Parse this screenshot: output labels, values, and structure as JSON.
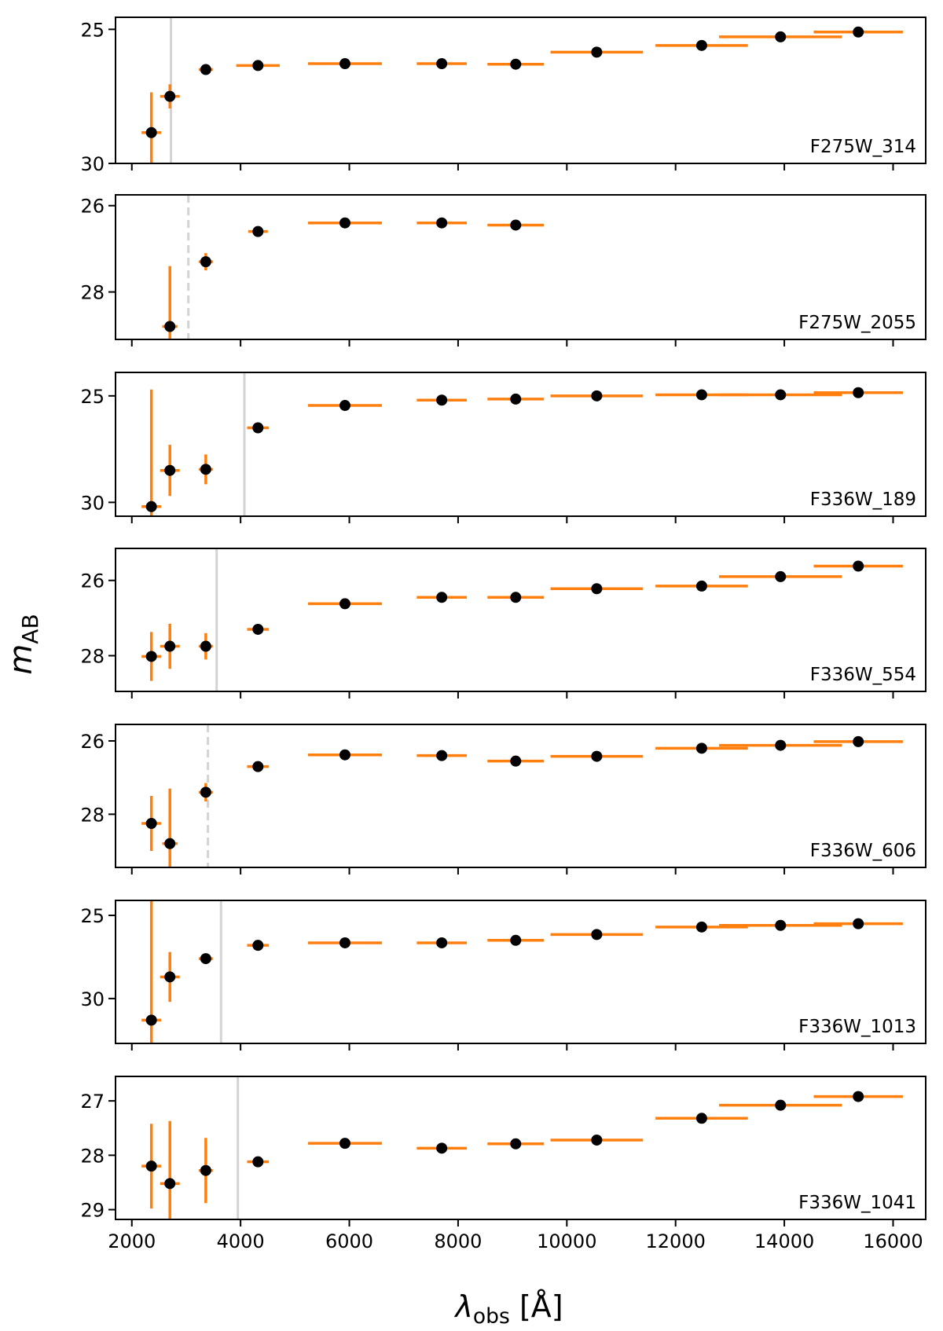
{
  "chart_data": {
    "type": "scatter",
    "description_free": true,
    "xlabel": "λobs [Å]",
    "ylabel": "mAB",
    "xlim": [
      1700,
      16600
    ],
    "xticks": [
      2000,
      4000,
      6000,
      8000,
      10000,
      12000,
      14000,
      16000
    ],
    "y_inverted": true,
    "grid": false,
    "colors": {
      "errorbar": "#ff7f0e",
      "marker": "#000000",
      "limit_solid": "#d3d3d3",
      "limit_dashed": "#d3d3d3",
      "frame": "#000000"
    },
    "panels": [
      {
        "label": "F275W_314",
        "ylim": [
          30.0,
          24.55
        ],
        "yticks": [
          25,
          30
        ],
        "limit": {
          "x": 2720,
          "style": "solid"
        },
        "points": [
          {
            "x": 2360,
            "y": 28.85,
            "xerr": 180,
            "yerr": 1.5
          },
          {
            "x": 2700,
            "y": 27.5,
            "xerr": 180,
            "yerr": 0.45
          },
          {
            "x": 3360,
            "y": 26.5,
            "xerr": 130,
            "yerr": 0.15
          },
          {
            "x": 4320,
            "y": 26.35,
            "xerr": 400,
            "yerr": 0.08
          },
          {
            "x": 5920,
            "y": 26.28,
            "xerr": 680,
            "yerr": 0.06
          },
          {
            "x": 7700,
            "y": 26.28,
            "xerr": 460,
            "yerr": 0.06
          },
          {
            "x": 9060,
            "y": 26.3,
            "xerr": 520,
            "yerr": 0.06
          },
          {
            "x": 10550,
            "y": 25.85,
            "xerr": 850,
            "yerr": 0.06
          },
          {
            "x": 12480,
            "y": 25.6,
            "xerr": 850,
            "yerr": 0.06
          },
          {
            "x": 13930,
            "y": 25.28,
            "xerr": 1130,
            "yerr": 0.06
          },
          {
            "x": 15360,
            "y": 25.1,
            "xerr": 820,
            "yerr": 0.06
          }
        ]
      },
      {
        "label": "F275W_2055",
        "ylim": [
          29.1,
          25.75
        ],
        "yticks": [
          26,
          28
        ],
        "limit": {
          "x": 3040,
          "style": "dashed"
        },
        "points": [
          {
            "x": 2700,
            "y": 28.8,
            "xerr": 140,
            "yerr": 1.4
          },
          {
            "x": 3360,
            "y": 27.3,
            "xerr": 130,
            "yerr": 0.2
          },
          {
            "x": 4320,
            "y": 26.6,
            "xerr": 180,
            "yerr": 0.08
          },
          {
            "x": 5920,
            "y": 26.4,
            "xerr": 680,
            "yerr": 0.06
          },
          {
            "x": 7700,
            "y": 26.4,
            "xerr": 460,
            "yerr": 0.06
          },
          {
            "x": 9060,
            "y": 26.45,
            "xerr": 520,
            "yerr": 0.06
          }
        ]
      },
      {
        "label": "F336W_189",
        "ylim": [
          30.65,
          23.9
        ],
        "yticks": [
          25,
          30
        ],
        "limit": {
          "x": 4070,
          "style": "solid"
        },
        "points": [
          {
            "x": 2360,
            "y": 30.2,
            "xerr": 180,
            "yerr": 5.5
          },
          {
            "x": 2700,
            "y": 28.5,
            "xerr": 180,
            "yerr": 1.2
          },
          {
            "x": 3360,
            "y": 28.45,
            "xerr": 130,
            "yerr": 0.7
          },
          {
            "x": 4320,
            "y": 26.5,
            "xerr": 200,
            "yerr": 0.1
          },
          {
            "x": 5920,
            "y": 25.45,
            "xerr": 680,
            "yerr": 0.06
          },
          {
            "x": 7700,
            "y": 25.2,
            "xerr": 460,
            "yerr": 0.06
          },
          {
            "x": 9060,
            "y": 25.15,
            "xerr": 520,
            "yerr": 0.06
          },
          {
            "x": 10550,
            "y": 25.0,
            "xerr": 850,
            "yerr": 0.06
          },
          {
            "x": 12480,
            "y": 24.95,
            "xerr": 850,
            "yerr": 0.06
          },
          {
            "x": 13930,
            "y": 24.95,
            "xerr": 1130,
            "yerr": 0.06
          },
          {
            "x": 15360,
            "y": 24.85,
            "xerr": 820,
            "yerr": 0.06
          }
        ]
      },
      {
        "label": "F336W_554",
        "ylim": [
          28.95,
          25.15
        ],
        "yticks": [
          26,
          28
        ],
        "limit": {
          "x": 3560,
          "style": "solid"
        },
        "points": [
          {
            "x": 2360,
            "y": 28.02,
            "xerr": 180,
            "yerr": 0.65
          },
          {
            "x": 2700,
            "y": 27.75,
            "xerr": 180,
            "yerr": 0.6
          },
          {
            "x": 3360,
            "y": 27.75,
            "xerr": 130,
            "yerr": 0.35
          },
          {
            "x": 4320,
            "y": 27.3,
            "xerr": 200,
            "yerr": 0.08
          },
          {
            "x": 5920,
            "y": 26.62,
            "xerr": 680,
            "yerr": 0.06
          },
          {
            "x": 7700,
            "y": 26.45,
            "xerr": 460,
            "yerr": 0.06
          },
          {
            "x": 9060,
            "y": 26.45,
            "xerr": 520,
            "yerr": 0.06
          },
          {
            "x": 10550,
            "y": 26.22,
            "xerr": 850,
            "yerr": 0.06
          },
          {
            "x": 12480,
            "y": 26.15,
            "xerr": 850,
            "yerr": 0.06
          },
          {
            "x": 13930,
            "y": 25.9,
            "xerr": 1130,
            "yerr": 0.06
          },
          {
            "x": 15360,
            "y": 25.62,
            "xerr": 820,
            "yerr": 0.06
          }
        ]
      },
      {
        "label": "F336W_606",
        "ylim": [
          29.45,
          25.55
        ],
        "yticks": [
          26,
          28
        ],
        "limit": {
          "x": 3400,
          "style": "dashed"
        },
        "points": [
          {
            "x": 2360,
            "y": 28.25,
            "xerr": 180,
            "yerr": 0.75
          },
          {
            "x": 2700,
            "y": 28.8,
            "xerr": 140,
            "yerr": 1.5
          },
          {
            "x": 3360,
            "y": 27.4,
            "xerr": 130,
            "yerr": 0.25
          },
          {
            "x": 4320,
            "y": 26.7,
            "xerr": 200,
            "yerr": 0.08
          },
          {
            "x": 5920,
            "y": 26.38,
            "xerr": 680,
            "yerr": 0.06
          },
          {
            "x": 7700,
            "y": 26.4,
            "xerr": 460,
            "yerr": 0.06
          },
          {
            "x": 9060,
            "y": 26.55,
            "xerr": 520,
            "yerr": 0.06
          },
          {
            "x": 10550,
            "y": 26.42,
            "xerr": 850,
            "yerr": 0.06
          },
          {
            "x": 12480,
            "y": 26.2,
            "xerr": 850,
            "yerr": 0.06
          },
          {
            "x": 13930,
            "y": 26.12,
            "xerr": 1130,
            "yerr": 0.06
          },
          {
            "x": 15360,
            "y": 26.02,
            "xerr": 820,
            "yerr": 0.06
          }
        ]
      },
      {
        "label": "F336W_1013",
        "ylim": [
          32.7,
          24.1
        ],
        "yticks": [
          25,
          30
        ],
        "limit": {
          "x": 3640,
          "style": "solid"
        },
        "points": [
          {
            "x": 2360,
            "y": 31.3,
            "xerr": 180,
            "yerr": 7.5
          },
          {
            "x": 2700,
            "y": 28.7,
            "xerr": 180,
            "yerr": 1.5
          },
          {
            "x": 3360,
            "y": 27.6,
            "xerr": 130,
            "yerr": 0.2
          },
          {
            "x": 4320,
            "y": 26.8,
            "xerr": 200,
            "yerr": 0.1
          },
          {
            "x": 5920,
            "y": 26.65,
            "xerr": 680,
            "yerr": 0.06
          },
          {
            "x": 7700,
            "y": 26.65,
            "xerr": 460,
            "yerr": 0.06
          },
          {
            "x": 9060,
            "y": 26.5,
            "xerr": 520,
            "yerr": 0.06
          },
          {
            "x": 10550,
            "y": 26.15,
            "xerr": 850,
            "yerr": 0.06
          },
          {
            "x": 12480,
            "y": 25.7,
            "xerr": 850,
            "yerr": 0.06
          },
          {
            "x": 13930,
            "y": 25.6,
            "xerr": 1130,
            "yerr": 0.06
          },
          {
            "x": 15360,
            "y": 25.5,
            "xerr": 820,
            "yerr": 0.06
          }
        ]
      },
      {
        "label": "F336W_1041",
        "ylim": [
          29.18,
          26.55
        ],
        "yticks": [
          27,
          28,
          29
        ],
        "limit": {
          "x": 3950,
          "style": "solid"
        },
        "points": [
          {
            "x": 2360,
            "y": 28.2,
            "xerr": 180,
            "yerr": 0.78
          },
          {
            "x": 2700,
            "y": 28.52,
            "xerr": 180,
            "yerr": 1.15
          },
          {
            "x": 3360,
            "y": 28.28,
            "xerr": 130,
            "yerr": 0.6
          },
          {
            "x": 4320,
            "y": 28.12,
            "xerr": 200,
            "yerr": 0.06
          },
          {
            "x": 5920,
            "y": 27.78,
            "xerr": 680,
            "yerr": 0.04
          },
          {
            "x": 7700,
            "y": 27.87,
            "xerr": 460,
            "yerr": 0.04
          },
          {
            "x": 9060,
            "y": 27.79,
            "xerr": 520,
            "yerr": 0.04
          },
          {
            "x": 10550,
            "y": 27.72,
            "xerr": 850,
            "yerr": 0.04
          },
          {
            "x": 12480,
            "y": 27.32,
            "xerr": 850,
            "yerr": 0.04
          },
          {
            "x": 13930,
            "y": 27.08,
            "xerr": 1130,
            "yerr": 0.04
          },
          {
            "x": 15360,
            "y": 26.92,
            "xerr": 820,
            "yerr": 0.04
          }
        ]
      }
    ]
  }
}
